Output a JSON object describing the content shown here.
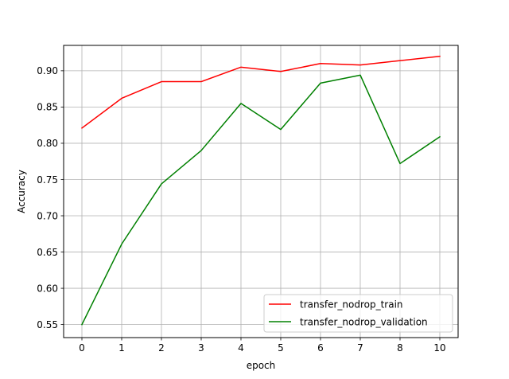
{
  "chart_data": {
    "type": "line",
    "title": "",
    "xlabel": "epoch",
    "ylabel": "Accuracy",
    "categories": [
      "0",
      "1",
      "2",
      "3",
      "4",
      "5",
      "6",
      "7",
      "8",
      "10"
    ],
    "x_ticks": [
      "0",
      "1",
      "2",
      "3",
      "4",
      "5",
      "6",
      "7",
      "8",
      "10"
    ],
    "y_ticks": [
      "0.55",
      "0.60",
      "0.65",
      "0.70",
      "0.75",
      "0.80",
      "0.85",
      "0.90"
    ],
    "ylim": [
      0.532,
      0.935
    ],
    "grid": true,
    "legend_position": "lower-right",
    "series": [
      {
        "name": "transfer_nodrop_train",
        "color": "#ff0000",
        "values": [
          0.821,
          0.862,
          0.885,
          0.885,
          0.905,
          0.899,
          0.91,
          0.908,
          0.914,
          0.92
        ]
      },
      {
        "name": "transfer_nodrop_validation",
        "color": "#008000",
        "values": [
          0.55,
          0.661,
          0.744,
          0.79,
          0.855,
          0.819,
          0.883,
          0.894,
          0.772,
          0.809
        ]
      }
    ]
  }
}
